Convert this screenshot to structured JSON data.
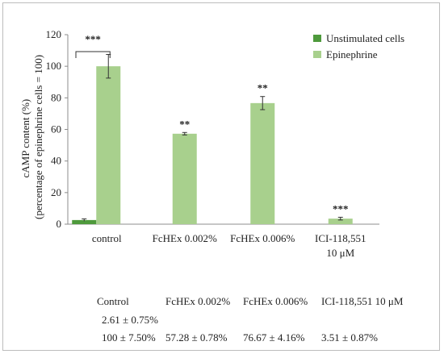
{
  "chart_data": {
    "type": "bar",
    "categories": [
      "control",
      "FcHEx 0.002%",
      "FcHEx 0.006%",
      "ICI-118,551"
    ],
    "category_sublabels": [
      "",
      "",
      "",
      "10 μM"
    ],
    "ylabel_line1": "cAMP content (%)",
    "ylabel_line2": "(percentage of epinephrine cells = 100)",
    "ylim": [
      0,
      120
    ],
    "yticks": [
      0,
      20,
      40,
      60,
      80,
      100,
      120
    ],
    "grid": false,
    "legend_position": "top-right",
    "series": [
      {
        "name": "Unstimulated cells",
        "color": "#4e9a3c",
        "values": [
          2.61,
          null,
          null,
          null
        ],
        "errors": [
          0.75,
          null,
          null,
          null
        ]
      },
      {
        "name": "Epinephrine",
        "color": "#a8d08d",
        "values": [
          100,
          57.28,
          76.67,
          3.51
        ],
        "errors": [
          7.5,
          0.78,
          4.16,
          0.87
        ]
      }
    ],
    "annotations": {
      "bracket": "***",
      "stars": [
        "",
        "**",
        "**",
        "***"
      ]
    }
  },
  "table": {
    "headers": [
      "Control",
      "FcHEx 0.002%",
      "FcHEx 0.006%",
      "ICI-118,551 10 μM"
    ],
    "row_unstimulated": [
      "2.61 ± 0.75%",
      "",
      "",
      ""
    ],
    "row_epinephrine": [
      "100 ± 7.50%",
      "57.28 ± 0.78%",
      "76.67 ± 4.16%",
      "3.51 ± 0.87%"
    ]
  }
}
